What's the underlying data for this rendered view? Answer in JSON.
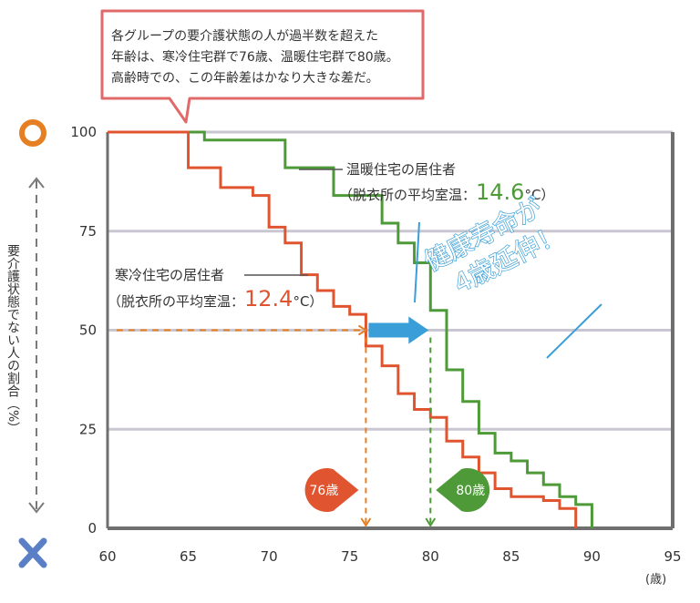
{
  "callout": {
    "lines": [
      "各グループの要介護状態の人が過半数を超えた",
      "年齢は、寒冷住宅群で76歳、温暖住宅群で80歳。",
      "高齢時での、この年齢差はかなり大きな差だ。"
    ]
  },
  "colors": {
    "warm": "#4e9a38",
    "cold": "#e0552f",
    "accent": "#3a9fd8",
    "grid": "#c9c6d2",
    "axis": "#6f6f6f",
    "callout_border": "#e06a6a",
    "ylabel_circle": "#e67e22",
    "ylabel_cross": "#5b7fc7"
  },
  "ylabel": {
    "text": "要介護状態でない人の割合（%）",
    "top_symbol": "circle-icon",
    "bottom_symbol": "cross-icon"
  },
  "chart_data": {
    "type": "line",
    "xlabel": "(歳)",
    "ylabel": "要介護状態でない人の割合（%）",
    "xlim": [
      60,
      95
    ],
    "ylim": [
      0,
      100
    ],
    "xticks": [
      60,
      65,
      70,
      75,
      80,
      85,
      90,
      95
    ],
    "yticks": [
      0,
      25,
      50,
      75,
      100
    ],
    "grid": true,
    "series": [
      {
        "name": "温暖住宅の居住者",
        "subtitle_prefix": "（脱衣所の平均室温：",
        "subtitle_value": "14.6",
        "subtitle_suffix": "°C）",
        "color": "#4e9a38",
        "x": [
          60,
          65,
          66,
          70,
          71,
          73,
          74,
          76,
          77,
          78,
          79,
          80,
          81,
          82,
          83,
          84,
          85,
          86,
          87,
          88,
          89,
          90
        ],
        "y": [
          100,
          100,
          98,
          98,
          91,
          91,
          84,
          84,
          77,
          72,
          67,
          55,
          40,
          32,
          24,
          19,
          17,
          14,
          11,
          8,
          6,
          5
        ]
      },
      {
        "name": "寒冷住宅の居住者",
        "subtitle_prefix": "（脱衣所の平均室温：",
        "subtitle_value": "12.4",
        "subtitle_suffix": "°C）",
        "color": "#e0552f",
        "x": [
          60,
          64,
          65,
          67,
          69,
          70,
          71,
          72,
          73,
          74,
          75,
          76,
          77,
          78,
          79,
          80,
          81,
          82,
          83,
          84,
          85,
          87,
          88,
          89
        ],
        "y": [
          100,
          100,
          91,
          86,
          84,
          76,
          72,
          64,
          60,
          56,
          54,
          46,
          41,
          34,
          30,
          28,
          22,
          18,
          14,
          10,
          8,
          7,
          5,
          3
        ]
      }
    ],
    "annotations": {
      "cold_marker": {
        "x": 76,
        "label": "76歳"
      },
      "warm_marker": {
        "x": 80,
        "label": "80歳"
      },
      "median_y": 50,
      "highlight_lines": [
        "健康寿命が",
        "4歳延伸！"
      ]
    }
  }
}
